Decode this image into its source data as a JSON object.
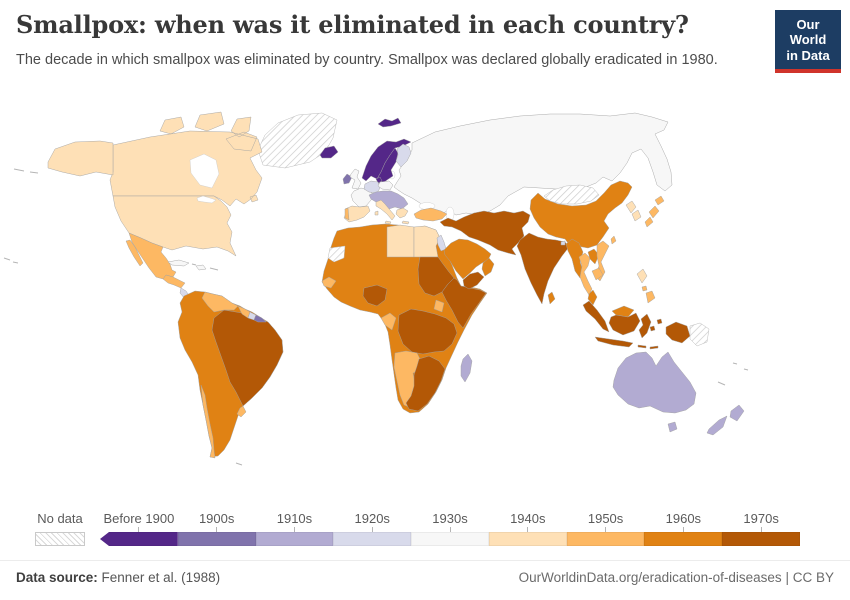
{
  "logo": {
    "line1": "Our World",
    "line2": "in Data",
    "bg_color": "#1d3d63",
    "accent_color": "#d0342b"
  },
  "footer": {
    "source_label": "Data source:",
    "source_value": "Fenner et al. (1988)",
    "link": "OurWorldinData.org/eradication-of-diseases",
    "separator": "|",
    "license": "CC BY"
  },
  "chart_data": {
    "type": "choropleth",
    "title": "Smallpox: when was it eliminated in each country?",
    "subtitle": "The decade in which smallpox was eliminated by country. Smallpox was declared globally eradicated in 1980.",
    "legend": {
      "no_data_label": "No data",
      "categories": [
        {
          "label": "Before 1900",
          "color": "#542788"
        },
        {
          "label": "1900s",
          "color": "#8073ac"
        },
        {
          "label": "1910s",
          "color": "#b2abd2"
        },
        {
          "label": "1920s",
          "color": "#d8daeb"
        },
        {
          "label": "1930s",
          "color": "#f7f7f7"
        },
        {
          "label": "1940s",
          "color": "#fee0b6"
        },
        {
          "label": "1950s",
          "color": "#fdb863"
        },
        {
          "label": "1960s",
          "color": "#e08214"
        },
        {
          "label": "1970s",
          "color": "#b35806"
        }
      ]
    },
    "countries": {
      "Canada": "1940s",
      "United States": "1940s",
      "Greenland": "No data",
      "Mexico": "1950s",
      "Guatemala & Honduras": "1950s",
      "Nicaragua, Costa Rica & Panama": "1920s",
      "Cuba": "1930s",
      "Hispaniola": "1930s",
      "Venezuela": "1950s",
      "Guyana": "1950s",
      "Suriname": "1920s",
      "French Guiana": "1900s",
      "Colombia, Ecuador, Peru, Bolivia, Paraguay & Argentina": "1960s",
      "Brazil": "1970s",
      "Chile": "1950s",
      "Uruguay": "1950s",
      "Iceland": "Before 1900",
      "Norway": "Before 1900",
      "Sweden": "Before 1900",
      "Svalbard": "Before 1900",
      "Denmark": "Before 1900",
      "Finland": "1920s",
      "Ireland": "1900s",
      "United Kingdom": "1930s",
      "France": "1930s",
      "Germany": "1920s",
      "Poland": "1930s",
      "Central Europe & Balkans": "1910s",
      "Italy": "1940s",
      "Greece": "1940s",
      "Spain": "1940s",
      "Portugal": "1950s",
      "Soviet Union (Russia & Central Asia)": "1930s",
      "Turkey": "1950s",
      "Syria, Iraq, Iran, Afghanistan & Pakistan": "1970s",
      "Israel & Lebanon": "1920s",
      "Saudi Arabia & Jordan": "1960s",
      "Yemen": "1970s",
      "Oman": "1960s",
      "Egypt": "1940s",
      "Libya": "1940s",
      "Western Sahara": "No data",
      "Morocco, Algeria, Tunisia, Mali, Niger, Chad, Kenya & Zambia": "1960s",
      "Senegal & Guinea": "1950s",
      "Nigeria": "1970s",
      "Gabon & Congo": "1950s",
      "Uganda": "1950s",
      "Sudan": "1970s",
      "Ethiopia & Somalia": "1970s",
      "DR Congo & Tanzania": "1970s",
      "Angola & Namibia": "1950s",
      "Zimbabwe, Mozambique, Botswana & South Africa": "1970s",
      "Madagascar": "1910s",
      "India, Nepal & Bangladesh": "1970s",
      "Bhutan": "1920s",
      "Sri Lanka": "1960s",
      "Myanmar": "1960s",
      "Thailand": "1950s",
      "Laos": "1960s",
      "Vietnam": "1950s",
      "Cambodia": "1950s",
      "Malaysia": "1960s",
      "Indonesia": "1970s",
      "Philippines (Luzon)": "1940s",
      "Philippines (south)": "1950s",
      "China": "1960s",
      "Mongolia": "No data",
      "North Korea": "1940s",
      "South Korea": "1940s",
      "Japan": "1950s",
      "Taiwan": "1950s",
      "Australia": "1910s",
      "New Zealand": "1910s",
      "Papua New Guinea": "No data"
    }
  }
}
